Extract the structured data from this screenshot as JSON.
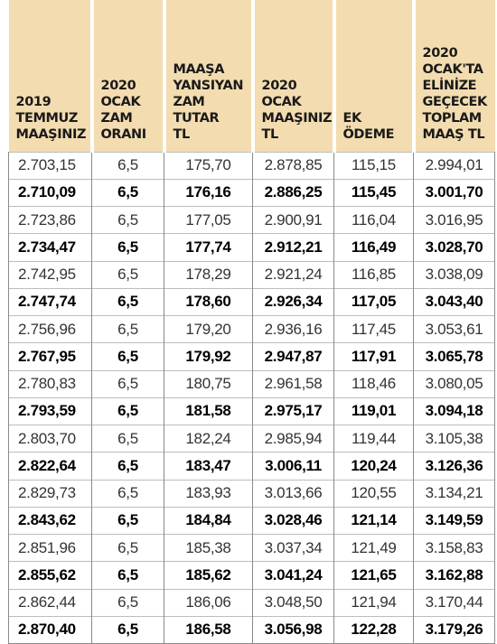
{
  "headers": [
    "2019\nTEMMUZ\nMAAŞINIZ",
    "2020\nOCAK\nZAM\nORANI",
    "MAAŞA\nYANSIYAN\nZAM\nTUTAR\nTL",
    "2020\nOCAK\nMAAŞINIZ\nTL",
    "EK\nÖDEME",
    "2020\nOCAK'TA\nELİNİZE\nGEÇECEK\nTOPLAM\nMAAŞ TL"
  ],
  "rows": [
    [
      "2.703,15",
      "6,5",
      "175,70",
      "2.878,85",
      "115,15",
      "2.994,01"
    ],
    [
      "2.710,09",
      "6,5",
      "176,16",
      "2.886,25",
      "115,45",
      "3.001,70"
    ],
    [
      "2.723,86",
      "6,5",
      "177,05",
      "2.900,91",
      "116,04",
      "3.016,95"
    ],
    [
      "2.734,47",
      "6,5",
      "177,74",
      "2.912,21",
      "116,49",
      "3.028,70"
    ],
    [
      "2.742,95",
      "6,5",
      "178,29",
      "2.921,24",
      "116,85",
      "3.038,09"
    ],
    [
      "2.747,74",
      "6,5",
      "178,60",
      "2.926,34",
      "117,05",
      "3.043,40"
    ],
    [
      "2.756,96",
      "6,5",
      "179,20",
      "2.936,16",
      "117,45",
      "3.053,61"
    ],
    [
      "2.767,95",
      "6,5",
      "179,92",
      "2.947,87",
      "117,91",
      "3.065,78"
    ],
    [
      "2.780,83",
      "6,5",
      "180,75",
      "2.961,58",
      "118,46",
      "3.080,05"
    ],
    [
      "2.793,59",
      "6,5",
      "181,58",
      "2.975,17",
      "119,01",
      "3.094,18"
    ],
    [
      "2.803,70",
      "6,5",
      "182,24",
      "2.985,94",
      "119,44",
      "3.105,38"
    ],
    [
      "2.822,64",
      "6,5",
      "183,47",
      "3.006,11",
      "120,24",
      "3.126,36"
    ],
    [
      "2.829,73",
      "6,5",
      "183,93",
      "3.013,66",
      "120,55",
      "3.134,21"
    ],
    [
      "2.843,62",
      "6,5",
      "184,84",
      "3.028,46",
      "121,14",
      "3.149,59"
    ],
    [
      "2.851,96",
      "6,5",
      "185,38",
      "3.037,34",
      "121,49",
      "3.158,83"
    ],
    [
      "2.855,62",
      "6,5",
      "185,62",
      "3.041,24",
      "121,65",
      "3.162,88"
    ],
    [
      "2.862,44",
      "6,5",
      "186,06",
      "3.048,50",
      "121,94",
      "3.170,44"
    ],
    [
      "2.870,40",
      "6,5",
      "186,58",
      "3.056,98",
      "122,28",
      "3.179,26"
    ]
  ],
  "colors": {
    "header_bg": "#f3dcb0",
    "grid_line": "#8a8a8a",
    "text": "#111111"
  }
}
